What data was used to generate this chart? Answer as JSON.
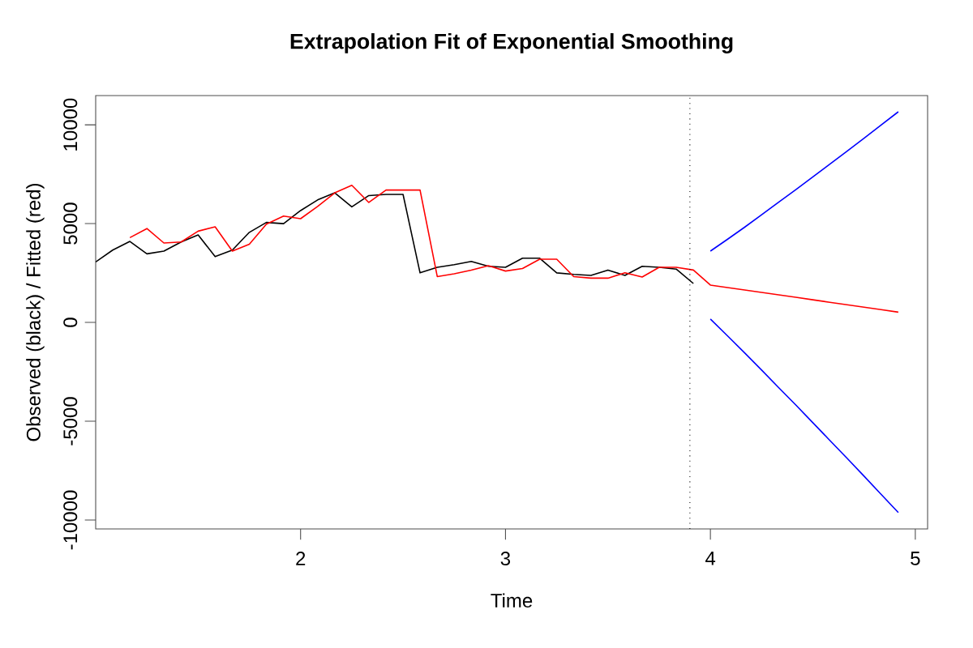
{
  "chart_data": {
    "type": "line",
    "title": "Extrapolation Fit of Exponential Smoothing",
    "xlabel": "Time",
    "ylabel": "Observed (black) / Fitted (red)",
    "xlim": [
      1.0,
      5.06
    ],
    "ylim": [
      -10450,
      11480
    ],
    "xticks": [
      2,
      3,
      4,
      5
    ],
    "yticks": [
      -10000,
      -5000,
      0,
      5000,
      10000
    ],
    "series": [
      {
        "color": "#000000",
        "x": [
          1.0,
          1.083,
          1.167,
          1.25,
          1.333,
          1.417,
          1.5,
          1.583,
          1.667,
          1.75,
          1.833,
          1.917,
          2.0,
          2.083,
          2.167,
          2.25,
          2.333,
          2.417,
          2.5,
          2.583,
          2.667,
          2.75,
          2.833,
          2.917,
          3.0,
          3.083,
          3.167,
          3.25,
          3.333,
          3.417,
          3.5,
          3.583,
          3.667,
          3.75,
          3.833,
          3.917
        ],
        "values": [
          3060,
          3660,
          4100,
          3470,
          3610,
          4070,
          4430,
          3330,
          3660,
          4560,
          5060,
          5000,
          5660,
          6200,
          6560,
          5850,
          6420,
          6480,
          6480,
          2510,
          2790,
          2920,
          3090,
          2840,
          2790,
          3250,
          3250,
          2510,
          2430,
          2380,
          2650,
          2380,
          2840,
          2790,
          2700,
          1970
        ]
      },
      {
        "color": "#ff0000",
        "x": [
          1.167,
          1.25,
          1.333,
          1.417,
          1.5,
          1.583,
          1.667,
          1.75,
          1.833,
          1.917,
          2.0,
          2.083,
          2.167,
          2.25,
          2.333,
          2.417,
          2.5,
          2.583,
          2.667,
          2.75,
          2.833,
          2.917,
          3.0,
          3.083,
          3.167,
          3.25,
          3.333,
          3.417,
          3.5,
          3.583,
          3.667,
          3.75,
          3.833,
          3.917,
          4.0,
          4.083,
          4.167,
          4.25,
          4.333,
          4.417,
          4.5,
          4.583,
          4.667,
          4.75,
          4.833,
          4.917
        ],
        "values": [
          4290,
          4750,
          4020,
          4070,
          4620,
          4840,
          3610,
          3960,
          4970,
          5380,
          5250,
          5870,
          6560,
          6940,
          6070,
          6700,
          6700,
          6700,
          2320,
          2460,
          2650,
          2870,
          2600,
          2730,
          3200,
          3200,
          2320,
          2240,
          2240,
          2510,
          2300,
          2790,
          2790,
          2650,
          1890,
          1765,
          1640,
          1520,
          1395,
          1270,
          1145,
          1020,
          895,
          770,
          645,
          520
        ]
      },
      {
        "color": "#0000ff",
        "x": [
          4.0,
          4.083,
          4.167,
          4.25,
          4.333,
          4.417,
          4.5,
          4.583,
          4.667,
          4.75,
          4.833,
          4.917
        ],
        "values": [
          3610,
          4205,
          4820,
          5450,
          6085,
          6720,
          7365,
          8010,
          8665,
          9320,
          9985,
          10660
        ]
      },
      {
        "color": "#0000ff",
        "x": [
          4.0,
          4.083,
          4.167,
          4.25,
          4.333,
          4.417,
          4.5,
          4.583,
          4.667,
          4.75,
          4.833,
          4.917
        ],
        "values": [
          170,
          -675,
          -1540,
          -2410,
          -3295,
          -4180,
          -5075,
          -5970,
          -6875,
          -7780,
          -8695,
          -9620
        ]
      }
    ],
    "ref_lines": [
      {
        "axis": "x",
        "value": 3.9,
        "color": "#000000",
        "line_style": "dotted"
      }
    ]
  }
}
